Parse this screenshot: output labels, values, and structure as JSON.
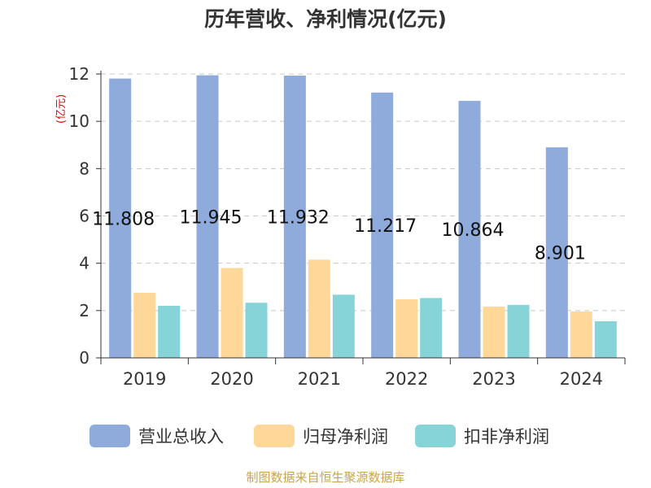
{
  "chart_data": {
    "type": "bar",
    "title": "历年营收、净利情况(亿元)",
    "ylabel": "(亿元)",
    "categories": [
      "2019",
      "2020",
      "2021",
      "2022",
      "2023",
      "2024"
    ],
    "series": [
      {
        "name": "营业总收入",
        "values": [
          11.808,
          11.945,
          11.932,
          11.217,
          10.864,
          8.901
        ],
        "color": "#8eabdb",
        "labels": [
          "11.808",
          "11.945",
          "11.932",
          "11.217",
          "10.864",
          "8.901"
        ]
      },
      {
        "name": "归母净利润",
        "values": [
          2.75,
          3.8,
          4.15,
          2.48,
          2.17,
          1.96
        ],
        "color": "#ffd799"
      },
      {
        "name": "扣非净利润",
        "values": [
          2.2,
          2.33,
          2.67,
          2.53,
          2.24,
          1.55
        ],
        "color": "#86d4d8"
      }
    ],
    "ylim": [
      0,
      12
    ],
    "yticks": [
      "0",
      "2",
      "4",
      "6",
      "8",
      "10",
      "12"
    ],
    "grid": true,
    "legend": "bottom"
  },
  "source": "制图数据来自恒生聚源数据库"
}
